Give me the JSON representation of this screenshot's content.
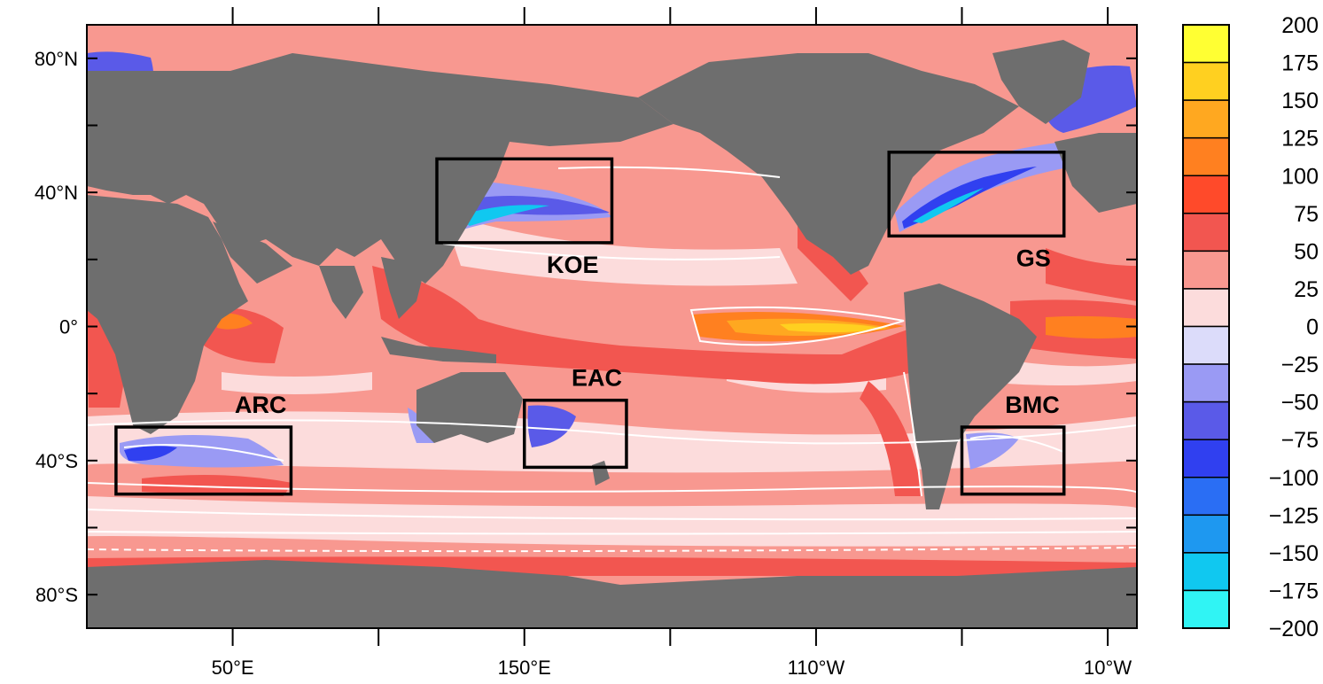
{
  "map": {
    "land_color": "#6e6e6e",
    "lat_ticks": [
      {
        "value": 80,
        "label": "80°N"
      },
      {
        "value": 60,
        "label": ""
      },
      {
        "value": 40,
        "label": "40°N"
      },
      {
        "value": 20,
        "label": ""
      },
      {
        "value": 0,
        "label": "0°"
      },
      {
        "value": -20,
        "label": ""
      },
      {
        "value": -40,
        "label": "40°S"
      },
      {
        "value": -60,
        "label": ""
      },
      {
        "value": -80,
        "label": "80°S"
      }
    ],
    "lon_ticks": [
      {
        "value": 50,
        "label": "50°E"
      },
      {
        "value": 100,
        "label": ""
      },
      {
        "value": 150,
        "label": "150°E"
      },
      {
        "value": 200,
        "label": ""
      },
      {
        "value": 250,
        "label": "110°W"
      },
      {
        "value": 300,
        "label": ""
      },
      {
        "value": 350,
        "label": "10°W"
      }
    ],
    "regions": [
      {
        "name": "KOE",
        "lon": [
          120,
          180
        ],
        "lat": [
          25,
          50
        ]
      },
      {
        "name": "GS",
        "lon": [
          275,
          335
        ],
        "lat": [
          27,
          52
        ]
      },
      {
        "name": "ARC",
        "lon": [
          10,
          70
        ],
        "lat": [
          -50,
          -30
        ]
      },
      {
        "name": "EAC",
        "lon": [
          150,
          185
        ],
        "lat": [
          -42,
          -22
        ]
      },
      {
        "name": "BMC",
        "lon": [
          300,
          335
        ],
        "lat": [
          -50,
          -30
        ]
      }
    ]
  },
  "colorbar": {
    "levels": [
      "200",
      "175",
      "150",
      "125",
      "100",
      "75",
      "50",
      "25",
      "0",
      "−25",
      "−50",
      "−75",
      "−100",
      "−125",
      "−150",
      "−175",
      "−200"
    ],
    "colors": [
      "#ffff33",
      "#ffd020",
      "#ffa820",
      "#ff8020",
      "#ff4a2a",
      "#f25650",
      "#f89890",
      "#fcdcdc",
      "#dcdcfa",
      "#9a9af4",
      "#5a5ae8",
      "#3040f0",
      "#2a6ef4",
      "#1e98f0",
      "#10c8f0",
      "#30f4f4"
    ]
  }
}
